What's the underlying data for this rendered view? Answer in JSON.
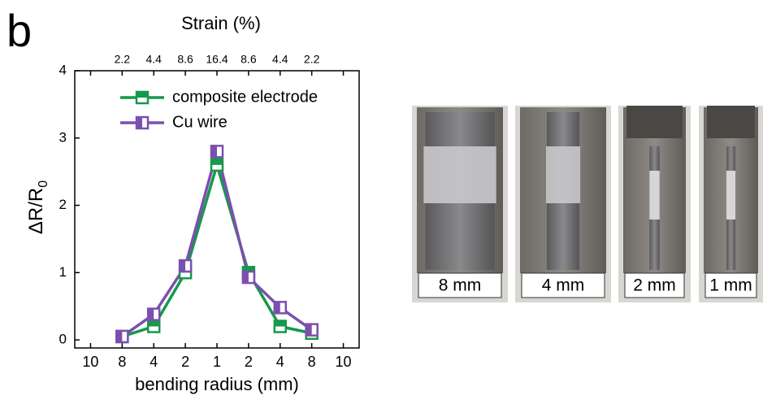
{
  "panel_label": "b",
  "chart_data": {
    "type": "line",
    "x_label": "bending radius (mm)",
    "top_label": "Strain (%)",
    "y_label": {
      "text": "ΔR/R",
      "subscript": "0"
    },
    "categories": [
      "10",
      "8",
      "4",
      "2",
      "1",
      "2",
      "4",
      "8",
      "10"
    ],
    "top_categories": [
      null,
      "2.2",
      "4.4",
      "8.6",
      "16.4",
      "8.6",
      "4.4",
      "2.2",
      null
    ],
    "ylim": [
      -0.12,
      4
    ],
    "yticks": [
      0,
      1,
      2,
      3,
      4
    ],
    "legend": "upper left",
    "series": [
      {
        "name": "composite electrode",
        "color": "#17984b",
        "marker": "half-top",
        "values": [
          null,
          0.05,
          0.2,
          1.0,
          2.6,
          1.0,
          0.2,
          0.1,
          null
        ]
      },
      {
        "name": "Cu wire",
        "color": "#7b4fae",
        "marker": "half-left",
        "values": [
          null,
          0.05,
          0.38,
          1.1,
          2.8,
          0.93,
          0.48,
          0.15,
          null
        ]
      }
    ]
  },
  "photos": [
    {
      "label": "8 mm"
    },
    {
      "label": "4 mm"
    },
    {
      "label": "2 mm"
    },
    {
      "label": "1 mm"
    }
  ]
}
